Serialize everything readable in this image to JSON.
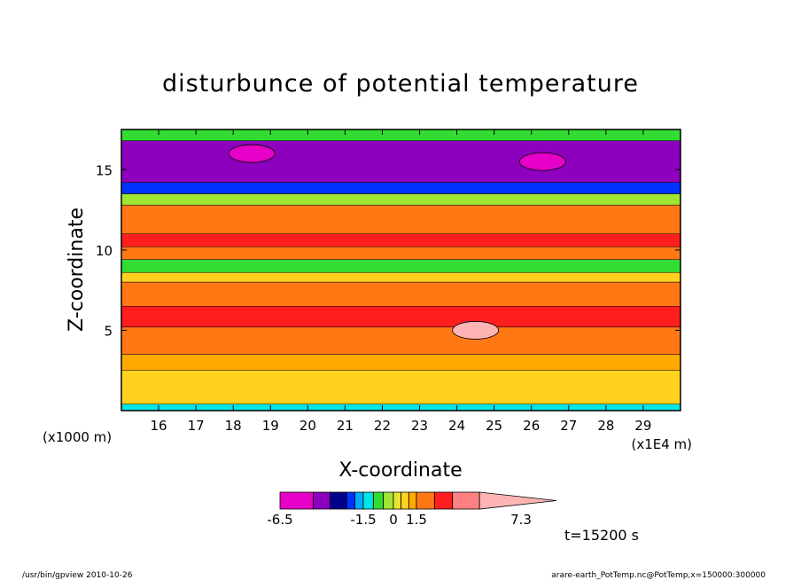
{
  "chart_data": {
    "type": "heatmap",
    "title": "disturbunce of potential temperature",
    "xlabel": "X-coordinate",
    "ylabel": "Z-coordinate",
    "x_unit": "(x1E4 m)",
    "y_unit": "(x1000 m)",
    "xlim": [
      15.0,
      30.0
    ],
    "ylim": [
      0.0,
      17.5
    ],
    "x_ticks": [
      16,
      17,
      18,
      19,
      20,
      21,
      22,
      23,
      24,
      25,
      26,
      27,
      28,
      29
    ],
    "y_ticks": [
      5,
      10,
      15
    ],
    "colorbar": {
      "levels": [
        -6.5,
        -4.5,
        -3.5,
        -2.5,
        -2.0,
        -1.5,
        -1.0,
        -0.5,
        0,
        0.5,
        1.0,
        1.5,
        2.5,
        3.5,
        5.0,
        7.3
      ],
      "colors": [
        "#e600c8",
        "#8c00be",
        "#00008c",
        "#0032ff",
        "#00aaff",
        "#00e6e6",
        "#32dc32",
        "#a0e632",
        "#e6e632",
        "#ffd21e",
        "#ffaa00",
        "#ff7814",
        "#ff1e1e",
        "#ff8080",
        "#ffb4b4"
      ],
      "tick_labels": [
        "-6.5",
        "-1.5",
        "0",
        "1.5",
        "7.3"
      ],
      "extend": "max"
    },
    "field_bands": [
      {
        "z_min": 0.0,
        "z_max": 0.4,
        "value": -1.5
      },
      {
        "z_min": 0.4,
        "z_max": 2.5,
        "value": 0.8
      },
      {
        "z_min": 2.5,
        "z_max": 3.5,
        "value": 1.2
      },
      {
        "z_min": 3.5,
        "z_max": 5.2,
        "value": 2.0
      },
      {
        "z_min": 5.2,
        "z_max": 6.5,
        "value": 3.0
      },
      {
        "z_min": 6.5,
        "z_max": 8.0,
        "value": 2.2
      },
      {
        "z_min": 8.0,
        "z_max": 8.6,
        "value": 0.8
      },
      {
        "z_min": 8.6,
        "z_max": 9.4,
        "value": -1.0
      },
      {
        "z_min": 9.4,
        "z_max": 10.2,
        "value": 2.0
      },
      {
        "z_min": 10.2,
        "z_max": 11.0,
        "value": 2.6
      },
      {
        "z_min": 11.0,
        "z_max": 12.8,
        "value": 1.8
      },
      {
        "z_min": 12.8,
        "z_max": 13.5,
        "value": -0.5
      },
      {
        "z_min": 13.5,
        "z_max": 14.2,
        "value": -2.2
      },
      {
        "z_min": 14.2,
        "z_max": 16.8,
        "value": -4.0
      },
      {
        "z_min": 16.8,
        "z_max": 17.5,
        "value": -0.8
      }
    ],
    "extrema": [
      {
        "x": 18.5,
        "z": 16.0,
        "value": -6.5
      },
      {
        "x": 26.3,
        "z": 15.5,
        "value": -6.5
      },
      {
        "x": 24.5,
        "z": 5.0,
        "value": 7.3
      }
    ],
    "annotation": "t=15200 s"
  },
  "footer": {
    "left": "/usr/bin/gpview   2010-10-26",
    "right": "arare-earth_PotTemp.nc@PotTemp,x=150000:300000"
  }
}
